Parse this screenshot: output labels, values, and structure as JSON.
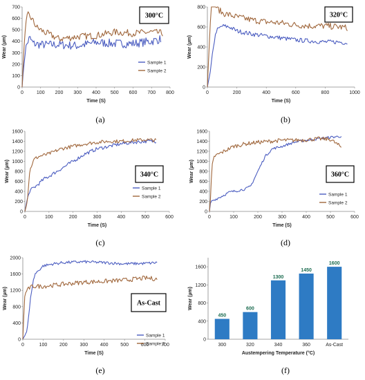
{
  "chart_data": [
    {
      "id": "a",
      "type": "line",
      "caption": "(a)",
      "annotation": "300°C",
      "xlabel": "Time (S)",
      "ylabel": "Wear (µm)",
      "xlim": [
        0,
        800
      ],
      "ylim": [
        0,
        700
      ],
      "xticks": [
        0,
        100,
        200,
        300,
        400,
        500,
        600,
        700,
        800
      ],
      "yticks": [
        0,
        100,
        200,
        300,
        400,
        500,
        600,
        700
      ],
      "legend": "bottom-right",
      "series": [
        {
          "name": "Sample 1",
          "color": "#4a5cc0",
          "noise": 38,
          "x": [
            0,
            10,
            20,
            40,
            60,
            100,
            200,
            300,
            400,
            500,
            600,
            700,
            750
          ],
          "y": [
            0,
            200,
            350,
            430,
            380,
            370,
            370,
            360,
            390,
            380,
            380,
            400,
            420
          ]
        },
        {
          "name": "Sample 2",
          "color": "#a0673c",
          "noise": 30,
          "x": [
            0,
            10,
            20,
            30,
            50,
            80,
            120,
            200,
            300,
            400,
            500,
            600,
            700,
            760
          ],
          "y": [
            0,
            350,
            550,
            640,
            600,
            520,
            480,
            420,
            440,
            450,
            480,
            470,
            480,
            470
          ]
        }
      ]
    },
    {
      "id": "b",
      "type": "line",
      "caption": "(b)",
      "annotation": "320°C",
      "xlabel": "Time (S)",
      "ylabel": "Wear (µm)",
      "xlim": [
        0,
        1000
      ],
      "ylim": [
        0,
        800
      ],
      "xticks": [
        0,
        200,
        400,
        600,
        800,
        1000
      ],
      "yticks": [
        0,
        200,
        400,
        600,
        800
      ],
      "legend": null,
      "series": [
        {
          "name": "Sample 1",
          "color": "#4a5cc0",
          "noise": 22,
          "x": [
            0,
            20,
            40,
            60,
            100,
            150,
            200,
            300,
            400,
            500,
            600,
            700,
            800,
            900,
            950
          ],
          "y": [
            0,
            150,
            400,
            560,
            610,
            600,
            560,
            530,
            510,
            490,
            470,
            460,
            450,
            450,
            440
          ]
        },
        {
          "name": "Sample 2",
          "color": "#a0673c",
          "noise": 32,
          "x": [
            0,
            15,
            25,
            40,
            60,
            100,
            200,
            300,
            400,
            500,
            600,
            700,
            800,
            900,
            950
          ],
          "y": [
            0,
            500,
            800,
            840,
            800,
            740,
            700,
            670,
            650,
            640,
            620,
            610,
            610,
            600,
            590
          ]
        }
      ]
    },
    {
      "id": "c",
      "type": "line",
      "caption": "(c)",
      "annotation": "340°C",
      "xlabel": "Time (S)",
      "ylabel": "Wear (µm)",
      "xlim": [
        0,
        600
      ],
      "ylim": [
        0,
        1600
      ],
      "xticks": [
        0,
        100,
        200,
        300,
        400,
        500,
        600
      ],
      "yticks": [
        0,
        200,
        400,
        600,
        800,
        1000,
        1200,
        1400,
        1600
      ],
      "legend": "bottom-right",
      "series": [
        {
          "name": "Sample 1",
          "color": "#4a5cc0",
          "noise": 35,
          "x": [
            0,
            10,
            20,
            30,
            50,
            80,
            100,
            150,
            200,
            250,
            300,
            350,
            400,
            450,
            500,
            545
          ],
          "y": [
            0,
            250,
            400,
            450,
            520,
            650,
            700,
            850,
            1000,
            1150,
            1250,
            1300,
            1350,
            1380,
            1400,
            1400
          ]
        },
        {
          "name": "Sample 2",
          "color": "#a0673c",
          "noise": 35,
          "x": [
            0,
            10,
            20,
            30,
            40,
            60,
            100,
            150,
            200,
            250,
            300,
            350,
            400,
            450,
            500,
            545
          ],
          "y": [
            0,
            200,
            800,
            950,
            1050,
            1100,
            1150,
            1250,
            1300,
            1350,
            1380,
            1400,
            1400,
            1420,
            1430,
            1420
          ]
        }
      ]
    },
    {
      "id": "d",
      "type": "line",
      "caption": "(d)",
      "annotation": "360°C",
      "xlabel": "Time (S)",
      "ylabel": "Wear (µm)",
      "xlim": [
        0,
        600
      ],
      "ylim": [
        0,
        1600
      ],
      "xticks": [
        0,
        100,
        200,
        300,
        400,
        500,
        600
      ],
      "yticks": [
        0,
        200,
        400,
        600,
        800,
        1000,
        1200,
        1400,
        1600
      ],
      "legend": "bottom-right",
      "series": [
        {
          "name": "Sample 1",
          "color": "#4a5cc0",
          "noise": 25,
          "x": [
            0,
            5,
            20,
            50,
            80,
            100,
            150,
            170,
            200,
            230,
            260,
            300,
            350,
            400,
            450,
            500,
            545
          ],
          "y": [
            0,
            200,
            230,
            300,
            380,
            400,
            450,
            500,
            800,
            1100,
            1250,
            1300,
            1380,
            1420,
            1450,
            1480,
            1500
          ]
        },
        {
          "name": "Sample 2",
          "color": "#a0673c",
          "noise": 40,
          "x": [
            0,
            5,
            10,
            20,
            40,
            80,
            100,
            150,
            200,
            250,
            300,
            350,
            400,
            450,
            500,
            545
          ],
          "y": [
            0,
            300,
            900,
            1100,
            1150,
            1250,
            1300,
            1350,
            1380,
            1400,
            1420,
            1420,
            1430,
            1450,
            1440,
            1280
          ]
        }
      ]
    },
    {
      "id": "e",
      "type": "line",
      "caption": "(e)",
      "annotation": "As-Cast",
      "xlabel": "Time (S)",
      "ylabel": "Wear (µm)",
      "xlim": [
        0,
        700
      ],
      "ylim": [
        0,
        2000
      ],
      "xticks": [
        0,
        100,
        200,
        300,
        400,
        500,
        600,
        700
      ],
      "yticks": [
        0,
        400,
        800,
        1200,
        1600,
        2000
      ],
      "legend": "bottom-right",
      "series": [
        {
          "name": "Sample 1",
          "color": "#4a5cc0",
          "noise": 35,
          "x": [
            0,
            10,
            20,
            30,
            40,
            50,
            60,
            80,
            100,
            150,
            200,
            300,
            400,
            500,
            600,
            660
          ],
          "y": [
            0,
            100,
            200,
            600,
            1100,
            1400,
            1600,
            1700,
            1800,
            1850,
            1880,
            1900,
            1880,
            1850,
            1860,
            1880
          ]
        },
        {
          "name": "Sample 2",
          "color": "#a0673c",
          "noise": 55,
          "x": [
            0,
            5,
            10,
            20,
            30,
            50,
            100,
            200,
            300,
            400,
            500,
            600,
            660
          ],
          "y": [
            0,
            600,
            1100,
            1200,
            1250,
            1300,
            1300,
            1350,
            1400,
            1420,
            1450,
            1500,
            1480
          ]
        }
      ]
    },
    {
      "id": "f",
      "type": "bar",
      "caption": "(f)",
      "xlabel": "Austempering Temperature (°C)",
      "ylabel": "Wear (µm)",
      "ylim": [
        0,
        1800
      ],
      "yticks": [
        0,
        400,
        800,
        1200,
        1600
      ],
      "categories": [
        "300",
        "320",
        "340",
        "360",
        "As-Cast"
      ],
      "values": [
        450,
        600,
        1300,
        1450,
        1600
      ],
      "value_labels": [
        "450",
        "600",
        "1300",
        "1450",
        "1600"
      ],
      "bar_color": "#2e7bc4"
    }
  ]
}
